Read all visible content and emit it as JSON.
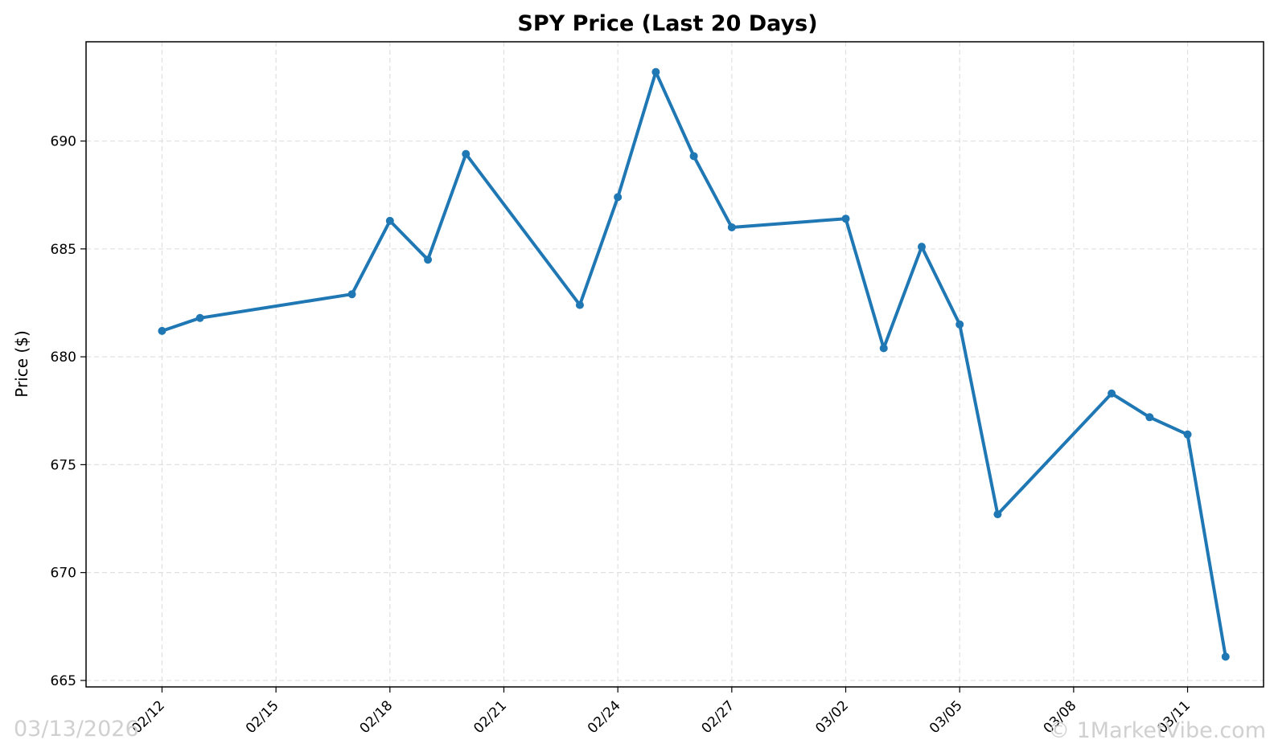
{
  "chart_data": {
    "type": "line",
    "title": "SPY Price (Last 20 Days)",
    "xlabel": "",
    "ylabel": "Price ($)",
    "ylim": [
      664.7,
      694.6
    ],
    "xlim": [
      "2026-02-10",
      "2026-03-13"
    ],
    "grid": true,
    "yticks": [
      665,
      670,
      675,
      680,
      685,
      690
    ],
    "xticks": [
      "02/12",
      "02/15",
      "02/18",
      "02/21",
      "02/24",
      "02/27",
      "03/02",
      "03/05",
      "03/08",
      "03/11"
    ],
    "xtick_dates": [
      "2026-02-12",
      "2026-02-15",
      "2026-02-18",
      "2026-02-21",
      "2026-02-24",
      "2026-02-27",
      "2026-03-02",
      "2026-03-05",
      "2026-03-08",
      "2026-03-11"
    ],
    "series": [
      {
        "color": "#1f77b4",
        "x": [
          "2026-02-12",
          "2026-02-13",
          "2026-02-17",
          "2026-02-18",
          "2026-02-19",
          "2026-02-20",
          "2026-02-23",
          "2026-02-24",
          "2026-02-25",
          "2026-02-26",
          "2026-02-27",
          "2026-03-02",
          "2026-03-03",
          "2026-03-04",
          "2026-03-05",
          "2026-03-06",
          "2026-03-09",
          "2026-03-10",
          "2026-03-11",
          "2026-03-12"
        ],
        "y": [
          681.2,
          681.8,
          682.9,
          686.3,
          684.5,
          689.4,
          682.4,
          687.4,
          693.2,
          689.3,
          686.0,
          686.4,
          680.4,
          685.1,
          681.5,
          672.7,
          678.3,
          677.2,
          676.4,
          666.1
        ]
      }
    ]
  },
  "watermark": {
    "date": "03/13/2026",
    "credit": "© 1MarketVibe.com"
  }
}
